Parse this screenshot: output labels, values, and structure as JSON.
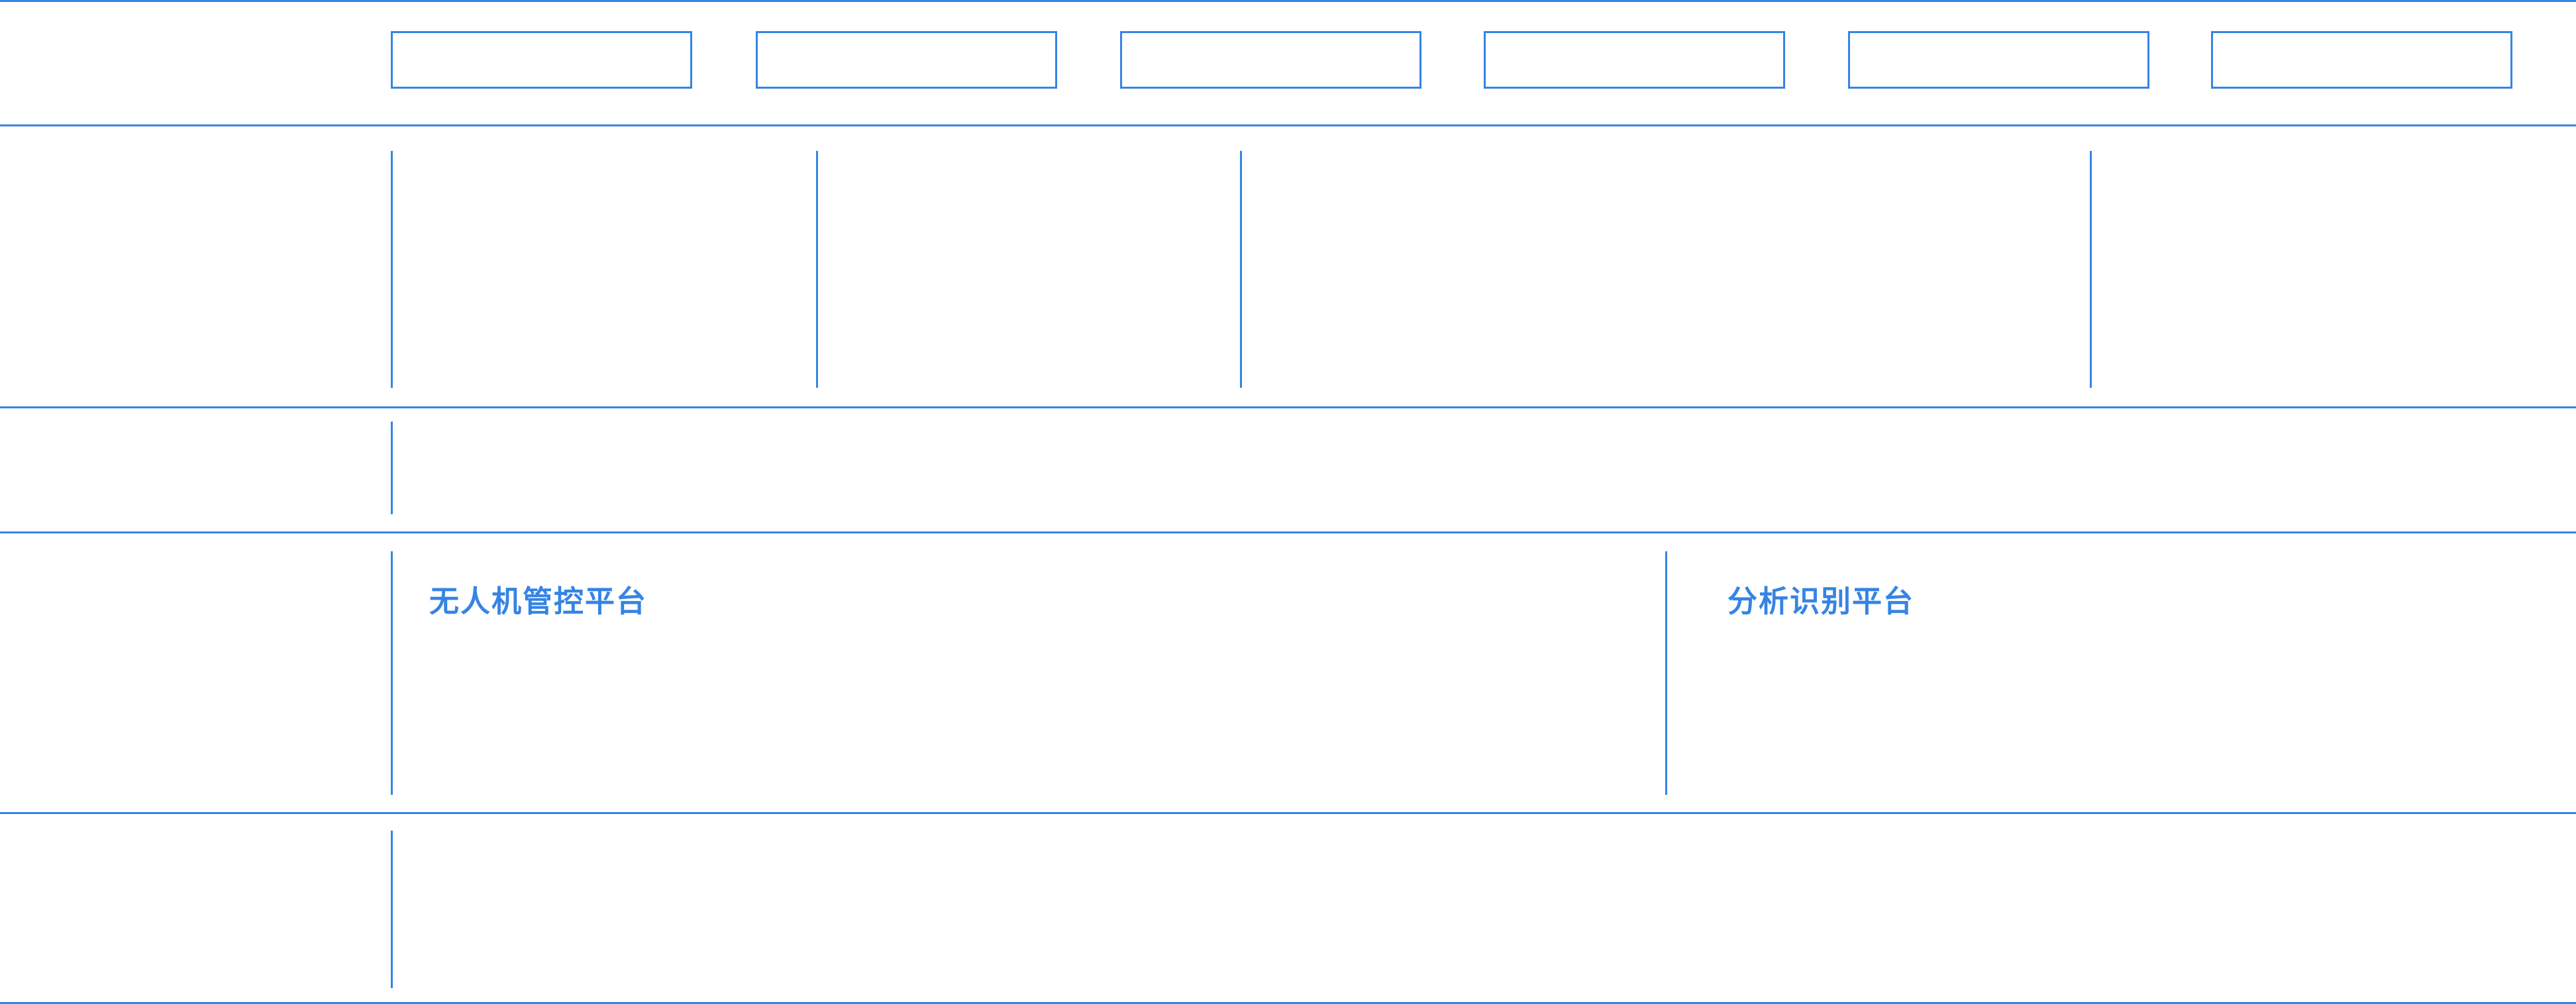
{
  "colors": {
    "accent": "#3584e4",
    "background": "#ffffff"
  },
  "platforms": [
    {
      "label": "无人机管控平台"
    },
    {
      "label": "分析识别平台"
    }
  ]
}
